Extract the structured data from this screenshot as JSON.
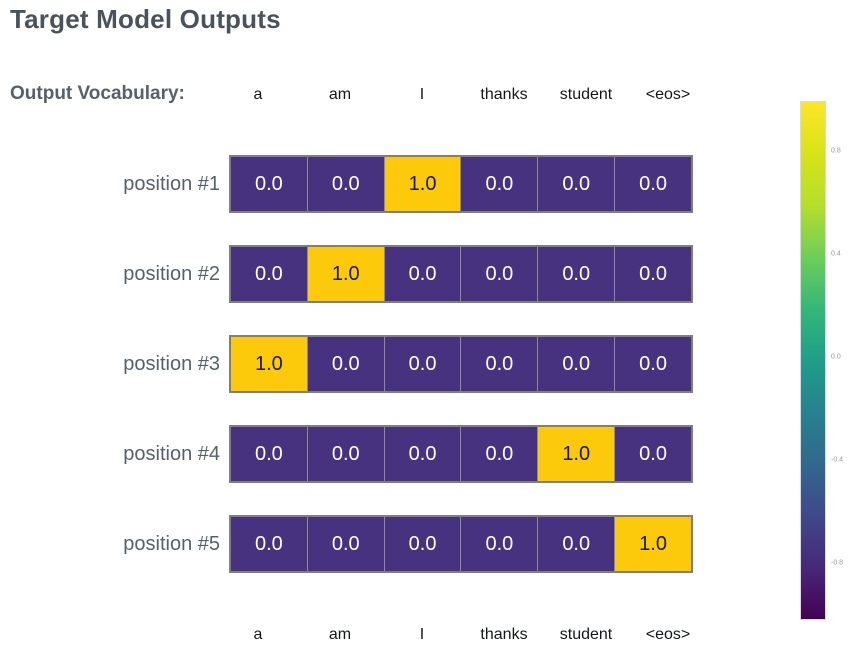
{
  "title": "Target Model Outputs",
  "vocab_label": "Output Vocabulary:",
  "colors": {
    "title_color": "#49535e",
    "label_color": "#57616b",
    "header_color": "#15181b",
    "cell_low": "#46327e",
    "cell_high": "#fcca0a",
    "cell_text_low": "#ffffff",
    "cell_text_high": "#15181b",
    "grid_border": "#7f7f7f",
    "cell_sep": "#8c8c8c",
    "cb_tick_color": "#999999",
    "cb_border": "#d9d9e2"
  },
  "chart_data": {
    "type": "heatmap",
    "title": "Target Model Outputs",
    "columns": [
      "a",
      "am",
      "I",
      "thanks",
      "student",
      "<eos>"
    ],
    "rows": [
      {
        "label": "position #1",
        "values": [
          0.0,
          0.0,
          1.0,
          0.0,
          0.0,
          0.0
        ],
        "display": [
          "0.0",
          "0.0",
          "1.0",
          "0.0",
          "0.0",
          "0.0"
        ]
      },
      {
        "label": "position #2",
        "values": [
          0.0,
          1.0,
          0.0,
          0.0,
          0.0,
          0.0
        ],
        "display": [
          "0.0",
          "1.0",
          "0.0",
          "0.0",
          "0.0",
          "0.0"
        ]
      },
      {
        "label": "position #3",
        "values": [
          1.0,
          0.0,
          0.0,
          0.0,
          0.0,
          0.0
        ],
        "display": [
          "1.0",
          "0.0",
          "0.0",
          "0.0",
          "0.0",
          "0.0"
        ]
      },
      {
        "label": "position #4",
        "values": [
          0.0,
          0.0,
          0.0,
          0.0,
          1.0,
          0.0
        ],
        "display": [
          "0.0",
          "0.0",
          "0.0",
          "0.0",
          "1.0",
          "0.0"
        ]
      },
      {
        "label": "position #5",
        "values": [
          0.0,
          0.0,
          0.0,
          0.0,
          0.0,
          1.0
        ],
        "display": [
          "0.0",
          "0.0",
          "0.0",
          "0.0",
          "0.0",
          "1.0"
        ]
      }
    ],
    "bottom_columns": [
      "a",
      "am",
      "I",
      "thanks",
      "student",
      "<eos>"
    ],
    "colorbar": {
      "colormap": "viridis",
      "range": [
        -1.0,
        1.0
      ],
      "ticks": [
        {
          "label": "0.8",
          "value": 0.8
        },
        {
          "label": "0.4",
          "value": 0.4
        },
        {
          "label": "0.0",
          "value": 0.0
        },
        {
          "label": "-0.4",
          "value": -0.4
        },
        {
          "label": "-0.8",
          "value": -0.8
        }
      ],
      "gradient": [
        "#fde725 0%",
        "#d8e219 10%",
        "#b5de2b 20%",
        "#6ece58 30%",
        "#35b779 40%",
        "#1f9e89 50%",
        "#26828e 60%",
        "#31688e 70%",
        "#3e4989 80%",
        "#482878 90%",
        "#440154 100%"
      ]
    }
  }
}
